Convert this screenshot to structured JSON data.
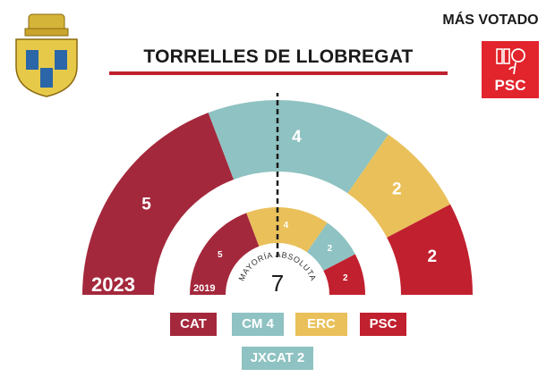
{
  "header": {
    "municipality": "TORRELLES DE LLOBREGAT",
    "most_voted_label": "MÁS VOTADO",
    "most_voted_party": "PSC"
  },
  "colors": {
    "CAT": "#a4283c",
    "CM": "#8fc2c2",
    "ERC": "#e9c05a",
    "PSC": "#c1202e",
    "JXCAT": "#8fc2c2",
    "title_rule": "#c0212f",
    "badge": "#e2242c"
  },
  "legend": {
    "cat": "CAT",
    "cm": "CM 4",
    "erc": "ERC",
    "psc": "PSC",
    "jxcat": "JXCAT 2"
  },
  "majority": {
    "label": "MAYORÍA ABSOLUTA",
    "seats": 7
  },
  "chart_data": {
    "type": "pie",
    "subtype": "parliament-hemicycle",
    "total_seats": 13,
    "majority": 7,
    "rings": [
      {
        "year": "2023",
        "ring": "outer",
        "seats": [
          {
            "party": "CAT",
            "seats": 5
          },
          {
            "party": "CM",
            "seats": 4
          },
          {
            "party": "ERC",
            "seats": 2
          },
          {
            "party": "PSC",
            "seats": 2
          }
        ]
      },
      {
        "year": "2019",
        "ring": "inner",
        "seats": [
          {
            "party": "CAT",
            "seats": 5
          },
          {
            "party": "ERC",
            "seats": 4
          },
          {
            "party": "CM",
            "seats": 2
          },
          {
            "party": "PSC",
            "seats": 2
          }
        ]
      }
    ]
  }
}
